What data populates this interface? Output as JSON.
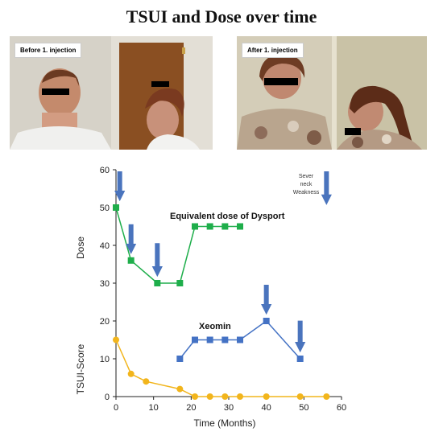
{
  "title": "TSUI and Dose over time",
  "photos": {
    "before_label": "Before 1. injection",
    "after_label": "After 1. injection"
  },
  "colors": {
    "green": "#1fae4b",
    "blue": "#4472c4",
    "yellow": "#f2b51c",
    "arrow": "#4a74bd"
  },
  "chart_data": {
    "type": "line",
    "xlabel": "Time (Months)",
    "ylabel_top": "Dose",
    "ylabel_bottom": "TSUI-Score",
    "xlim": [
      0,
      60
    ],
    "ylim": [
      0,
      60
    ],
    "xticks": [
      0,
      10,
      20,
      30,
      40,
      50,
      60
    ],
    "yticks": [
      0,
      10,
      20,
      30,
      40,
      50,
      60
    ],
    "grid": false,
    "series": [
      {
        "name": "Equivalent dose of Dysport",
        "color": "#1fae4b",
        "marker": "square",
        "x": [
          0,
          4,
          11,
          17,
          21,
          25,
          29,
          33
        ],
        "y": [
          50,
          36,
          30,
          30,
          45,
          45,
          45,
          45
        ]
      },
      {
        "name": "Xeomin",
        "color": "#4472c4",
        "marker": "square",
        "x": [
          17,
          21,
          25,
          29,
          33,
          40,
          49
        ],
        "y": [
          10,
          15,
          15,
          15,
          15,
          20,
          10
        ]
      },
      {
        "color": "#f2b51c",
        "marker": "circle",
        "x": [
          0,
          4,
          8,
          17,
          21,
          25,
          29,
          33,
          40,
          49,
          56
        ],
        "y": [
          15,
          6,
          4,
          2,
          0,
          0,
          0,
          0,
          0,
          0,
          0
        ]
      }
    ],
    "injection_arrows_x": [
      1,
      4,
      11,
      40,
      49,
      56
    ],
    "annotations": {
      "dysport_label": "Equivalent dose of Dysport",
      "xeomin_label": "Xeomin",
      "sever_neck_weakness": [
        "Sever",
        "neck",
        "Weakness"
      ]
    }
  }
}
